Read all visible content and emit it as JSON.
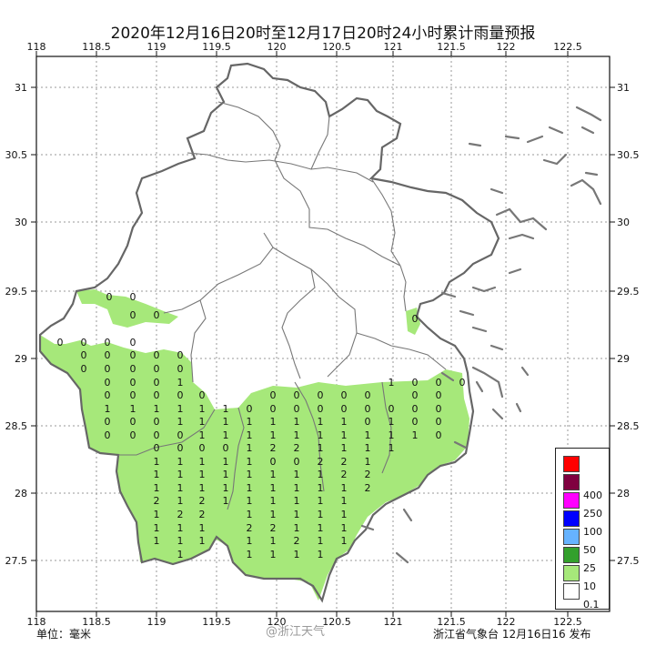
{
  "title": "2020年12月16日20时至12月17日20时24小时累计雨量预报",
  "footer": {
    "unit": "单位：毫米",
    "issuer": "浙江省气象台 12月16日16 发布",
    "watermark": "@浙江天气"
  },
  "axes": {
    "lon_labels": [
      "118",
      "118.5",
      "119",
      "119.5",
      "120",
      "120.5",
      "121",
      "121.5",
      "122",
      "122.5"
    ],
    "lat_labels": [
      "31",
      "30.5",
      "30",
      "29.5",
      "29",
      "28.5",
      "28",
      "27.5"
    ]
  },
  "legend": {
    "items": [
      {
        "label": "",
        "color": "#ff0000"
      },
      {
        "label": "400",
        "color": "#800040"
      },
      {
        "label": "250",
        "color": "#ff00ff"
      },
      {
        "label": "100",
        "color": "#0000ff"
      },
      {
        "label": "50",
        "color": "#66b3ff"
      },
      {
        "label": "25",
        "color": "#33a02c"
      },
      {
        "label": "10",
        "color": "#a6e87a"
      },
      {
        "label": "0.1",
        "color": "#ffffff"
      }
    ]
  },
  "rain_area_color": "#a6e87a",
  "stations": {
    "row_29_35": [
      "0",
      "0",
      "0",
      "0"
    ],
    "values": [
      "0",
      "0",
      "0",
      "0",
      "0",
      "0",
      "0",
      "0",
      "0",
      "0",
      "0",
      "0",
      "0",
      "0",
      "0",
      "0",
      "0",
      "1",
      "1",
      "0",
      "0",
      "0",
      "0",
      "0",
      "0",
      "0",
      "0",
      "0",
      "0",
      "0",
      "0",
      "0",
      "0",
      "0",
      "1",
      "1",
      "1",
      "1",
      "1",
      "1",
      "0",
      "0",
      "0",
      "0",
      "0",
      "0",
      "0",
      "0",
      "0",
      "0",
      "0",
      "0",
      "1",
      "1",
      "1",
      "1",
      "1",
      "1",
      "1",
      "1",
      "0",
      "1",
      "0",
      "0",
      "0",
      "0",
      "0",
      "0",
      "1",
      "1",
      "1",
      "1",
      "1",
      "1",
      "1",
      "1",
      "1",
      "1",
      "0",
      "0",
      "0",
      "0",
      "0",
      "1",
      "2",
      "2",
      "1",
      "1",
      "1",
      "1",
      "1",
      "1",
      "1",
      "1",
      "1",
      "0",
      "0",
      "2",
      "2",
      "1",
      "1",
      "1",
      "1",
      "1",
      "1",
      "1",
      "1",
      "1",
      "2",
      "2",
      "1",
      "1",
      "1",
      "1",
      "1",
      "1",
      "1",
      "1",
      "1",
      "2",
      "2",
      "1",
      "2",
      "1",
      "1",
      "1",
      "1",
      "1",
      "1",
      "1",
      "2",
      "2",
      "1",
      "1",
      "1",
      "1",
      "1",
      "1",
      "1",
      "1",
      "2",
      "2",
      "1",
      "1",
      "1",
      "1",
      "1",
      "1",
      "1",
      "1",
      "2",
      "1",
      "1",
      "1",
      "1",
      "1",
      "1",
      "1",
      "1",
      "1",
      "1",
      "1",
      "1",
      "1",
      "1",
      "1",
      "1",
      "1",
      "1",
      "1",
      "1",
      "1",
      "1",
      "1",
      "1",
      "1",
      "2",
      "1",
      "1",
      "1",
      "1",
      "1"
    ]
  }
}
